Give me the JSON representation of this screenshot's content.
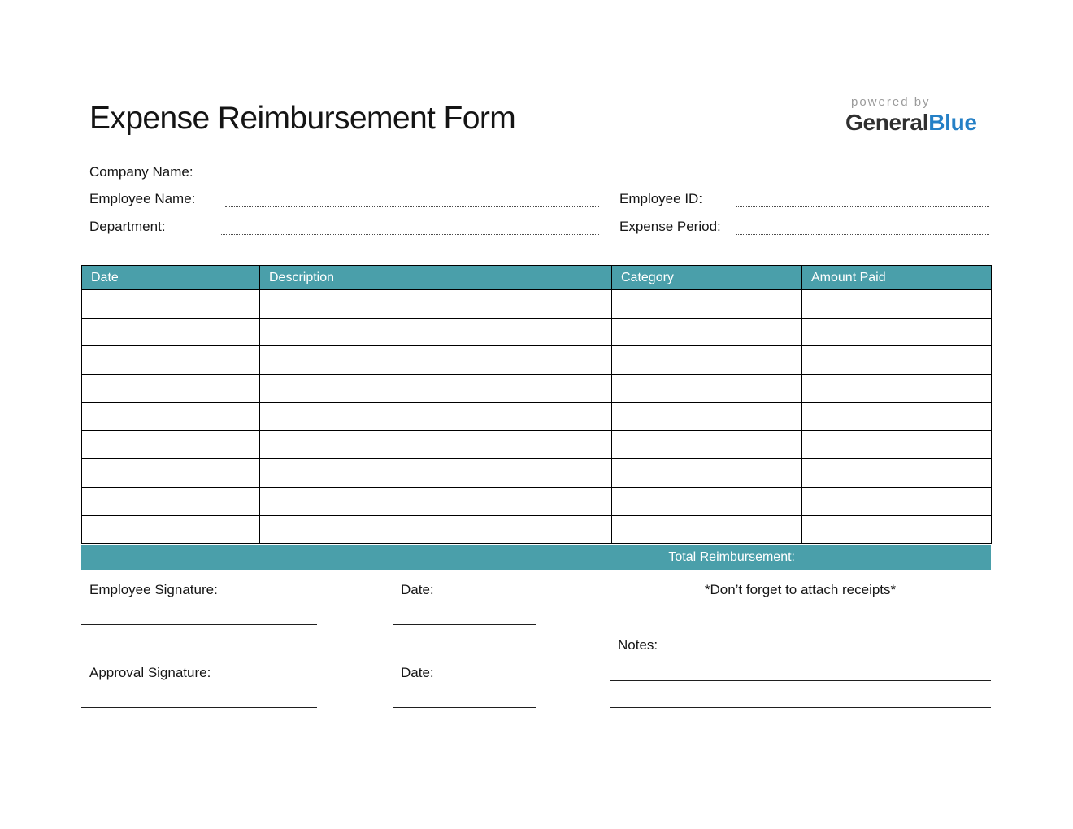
{
  "page": {
    "title": "Expense Reimbursement Form"
  },
  "brand": {
    "powered_by": "powered by",
    "name_primary": "General",
    "name_accent": "Blue"
  },
  "fields": {
    "company_name": {
      "label": "Company Name:",
      "value": ""
    },
    "employee_name": {
      "label": "Employee Name:",
      "value": ""
    },
    "employee_id": {
      "label": "Employee ID:",
      "value": ""
    },
    "department": {
      "label": "Department:",
      "value": ""
    },
    "expense_period": {
      "label": "Expense Period:",
      "value": ""
    }
  },
  "table": {
    "columns": [
      "Date",
      "Description",
      "Category",
      "Amount Paid"
    ],
    "rows": [
      [
        "",
        "",
        "",
        ""
      ],
      [
        "",
        "",
        "",
        ""
      ],
      [
        "",
        "",
        "",
        ""
      ],
      [
        "",
        "",
        "",
        ""
      ],
      [
        "",
        "",
        "",
        ""
      ],
      [
        "",
        "",
        "",
        ""
      ],
      [
        "",
        "",
        "",
        ""
      ],
      [
        "",
        "",
        "",
        ""
      ],
      [
        "",
        "",
        "",
        ""
      ]
    ],
    "total_label": "Total Reimbursement:",
    "total_value": ""
  },
  "signature_section": {
    "employee_signature_label": "Employee Signature:",
    "date_label_1": "Date:",
    "receipts_note": "*Don’t forget to attach receipts*",
    "notes_label": "Notes:",
    "approval_signature_label": "Approval Signature:",
    "date_label_2": "Date:"
  },
  "colors": {
    "teal": "#4A9FAA",
    "brand_blue": "#2580C6",
    "brand_dark": "#303030",
    "powered_gray": "#9B9B9B"
  }
}
